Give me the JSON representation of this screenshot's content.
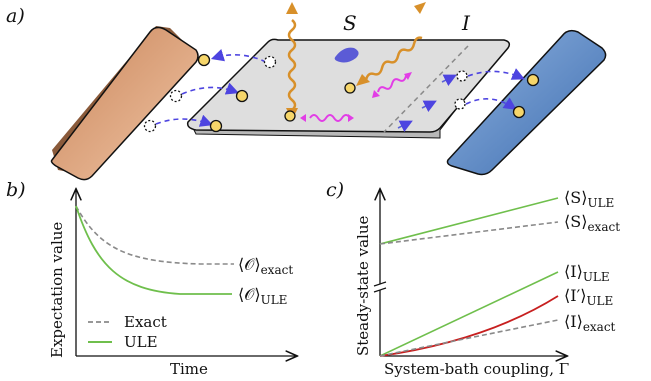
{
  "panels": {
    "a": {
      "label": "a)",
      "system_symbol": "S",
      "interface_symbol": "I"
    },
    "b": {
      "label": "b)",
      "ylabel": "Expectation value",
      "xlabel": "Time",
      "curve_labels": {
        "exact": "⟨𝒪⟩",
        "exact_sub": "exact",
        "ule": "⟨𝒪⟩",
        "ule_sub": "ULE"
      },
      "legend": {
        "exact": "Exact",
        "ule": "ULE"
      }
    },
    "c": {
      "label": "c)",
      "ylabel": "Steady-state value",
      "xlabel": "System-bath coupling, Γ",
      "curve_labels": {
        "s_ule": "⟨S⟩",
        "s_ule_sub": "ULE",
        "s_exact": "⟨S⟩",
        "s_exact_sub": "exact",
        "i_ule": "⟨I⟩",
        "i_ule_sub": "ULE",
        "ip_ule": "⟨I′⟩",
        "ip_ule_sub": "ULE",
        "i_exact": "⟨I⟩",
        "i_exact_sub": "exact"
      }
    }
  },
  "colors": {
    "left_bath": "#d99a72",
    "right_bath": "#5b86c4",
    "system_plate": "#dcdcdc",
    "particle": "#f6d66a",
    "photon": "#d8902a",
    "hop_arrow": "#4d44e0",
    "magenta": "#e23de6",
    "exact": "#8a8a8a",
    "ule": "#6fbf4c",
    "ip": "#c71f1f",
    "blob": "#5b5bd6"
  }
}
